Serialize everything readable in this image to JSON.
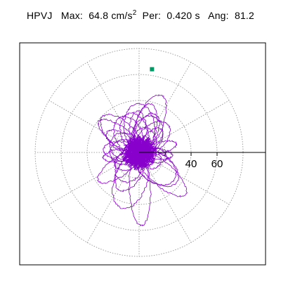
{
  "title": {
    "station": "HPVJ",
    "max_label": "Max:",
    "max_value": "64.8",
    "max_unit": "cm/s",
    "max_exp": "2",
    "per_label": "Per:",
    "per_value": "0.420 s",
    "ang_label": "Ang:",
    "ang_value": "81.2"
  },
  "chart_data": {
    "type": "scatter",
    "subtype": "polar hodogram (particle-motion orbit)",
    "radial_ticks": [
      "40",
      "60"
    ],
    "radial_tick_values": [
      40,
      60
    ],
    "ring_values": [
      20,
      40,
      60,
      80
    ],
    "radial_max": 80,
    "spoke_step_deg": 30,
    "grid": true,
    "peak": {
      "radius": 64.8,
      "angle_deg": 81.2,
      "marker_color": "#009966"
    },
    "trace_color": "#8800cc",
    "lobes": [
      {
        "angle_deg": 81,
        "amp": 60,
        "width": 10,
        "loops": 3
      },
      {
        "angle_deg": 128,
        "amp": 45,
        "width": 8,
        "loops": 3
      },
      {
        "angle_deg": 48,
        "amp": 40,
        "width": 8,
        "loops": 3
      },
      {
        "angle_deg": 305,
        "amp": 58,
        "width": 10,
        "loops": 3
      },
      {
        "angle_deg": 258,
        "amp": 62,
        "width": 10,
        "loops": 3
      },
      {
        "angle_deg": 220,
        "amp": 44,
        "width": 9,
        "loops": 3
      },
      {
        "angle_deg": 180,
        "amp": 42,
        "width": 8,
        "loops": 3
      },
      {
        "angle_deg": 5,
        "amp": 36,
        "width": 7,
        "loops": 2
      },
      {
        "angle_deg": 345,
        "amp": 30,
        "width": 7,
        "loops": 2
      },
      {
        "angle_deg": 160,
        "amp": 36,
        "width": 8,
        "loops": 2
      },
      {
        "angle_deg": 100,
        "amp": 48,
        "width": 9,
        "loops": 2
      },
      {
        "angle_deg": 62,
        "amp": 52,
        "width": 9,
        "loops": 2
      }
    ]
  }
}
